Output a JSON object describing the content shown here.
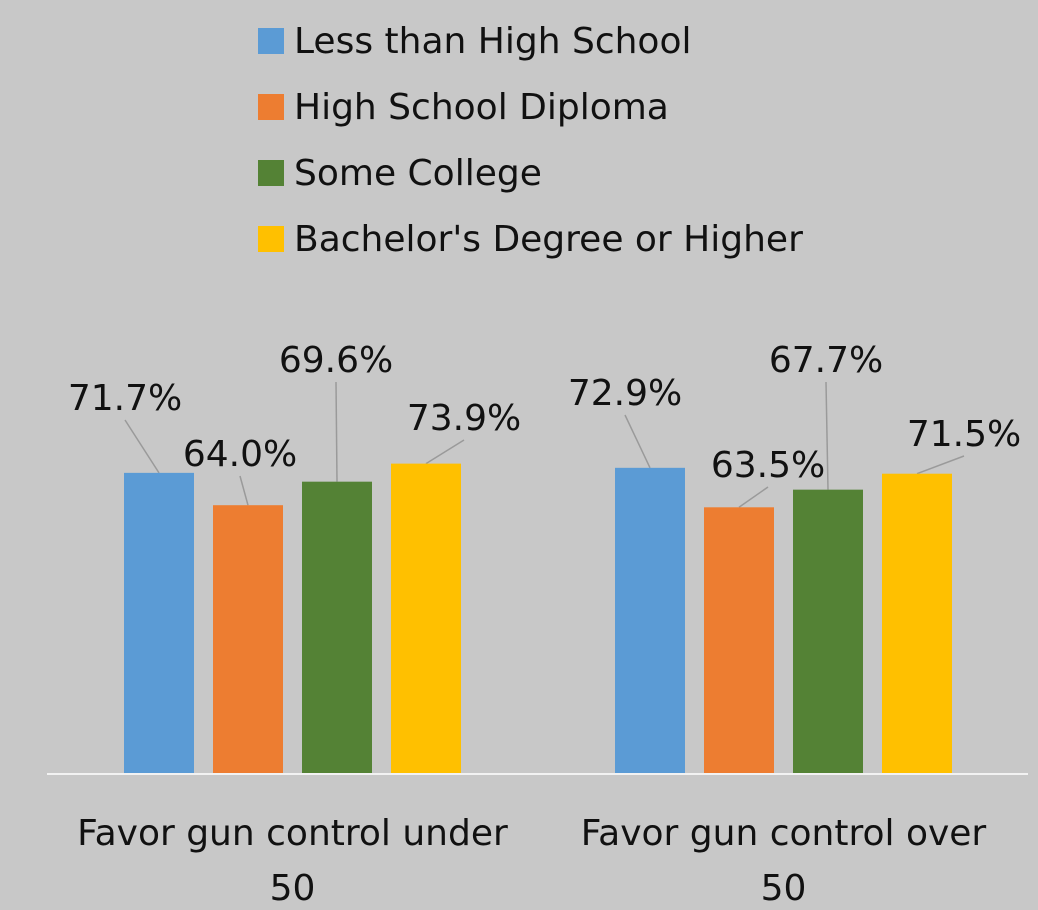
{
  "chart_data": {
    "type": "bar",
    "categories": [
      [
        "Favor gun control under",
        "50"
      ],
      [
        "Favor gun control over",
        "50"
      ]
    ],
    "series": [
      {
        "name": "Less than High School",
        "color": "#5b9bd5",
        "values": [
          71.7,
          72.9
        ],
        "labels": [
          "71.7%",
          "72.9%"
        ]
      },
      {
        "name": "High School Diploma",
        "color": "#ed7d31",
        "values": [
          64.0,
          63.5
        ],
        "labels": [
          "64.0%",
          "63.5%"
        ]
      },
      {
        "name": "Some College",
        "color": "#548235",
        "values": [
          69.6,
          67.7
        ],
        "labels": [
          "69.6%",
          "67.7%"
        ]
      },
      {
        "name": "Bachelor's Degree or Higher",
        "color": "#ffc000",
        "values": [
          73.9,
          71.5
        ],
        "labels": [
          "73.9%",
          "71.5%"
        ]
      }
    ],
    "legend_position": "top",
    "grid": false
  },
  "colors": {
    "background": "#c8c8c8",
    "axis": "#f2f2f2",
    "leader": "#9a9a9a"
  }
}
